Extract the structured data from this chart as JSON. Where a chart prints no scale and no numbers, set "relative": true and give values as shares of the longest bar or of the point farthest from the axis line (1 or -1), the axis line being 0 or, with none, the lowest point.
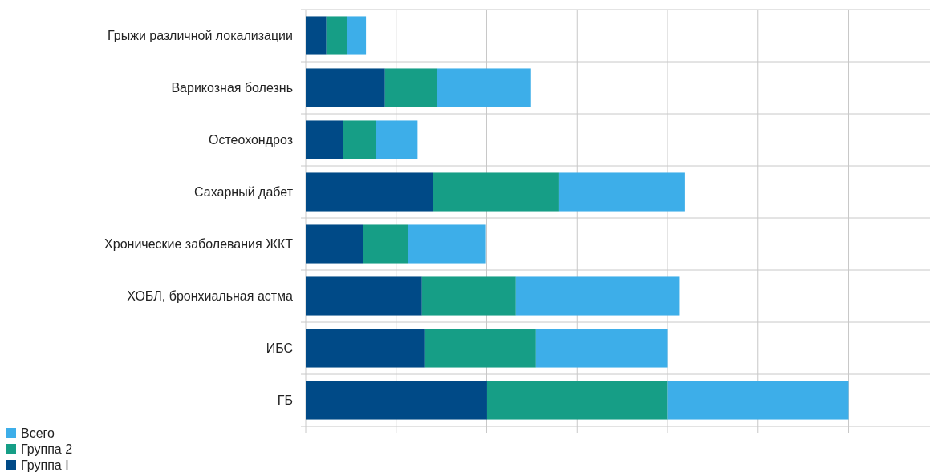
{
  "chart_data": {
    "type": "bar",
    "orientation": "horizontal",
    "stacked": true,
    "relative": true,
    "grid": true,
    "legend": "bottom left",
    "categories": [
      "Грыжи различной локализации",
      "Варикозная болезнь",
      "Остеохондроз",
      "Сахарный дабет",
      "Хронические заболевания ЖКТ",
      "ХОБЛ, бронхиальная астма",
      "ИБС",
      "ГБ"
    ],
    "series": [
      {
        "name": "Группа I",
        "color": "#004a87",
        "values": [
          0.038,
          0.146,
          0.068,
          0.235,
          0.106,
          0.214,
          0.22,
          0.334
        ]
      },
      {
        "name": "Группа 2",
        "color": "#169e86",
        "values": [
          0.038,
          0.095,
          0.061,
          0.232,
          0.083,
          0.173,
          0.204,
          0.332
        ]
      },
      {
        "name": "Всего",
        "color": "#3daee9",
        "values": [
          0.035,
          0.174,
          0.077,
          0.232,
          0.143,
          0.301,
          0.242,
          0.334
        ]
      }
    ]
  }
}
